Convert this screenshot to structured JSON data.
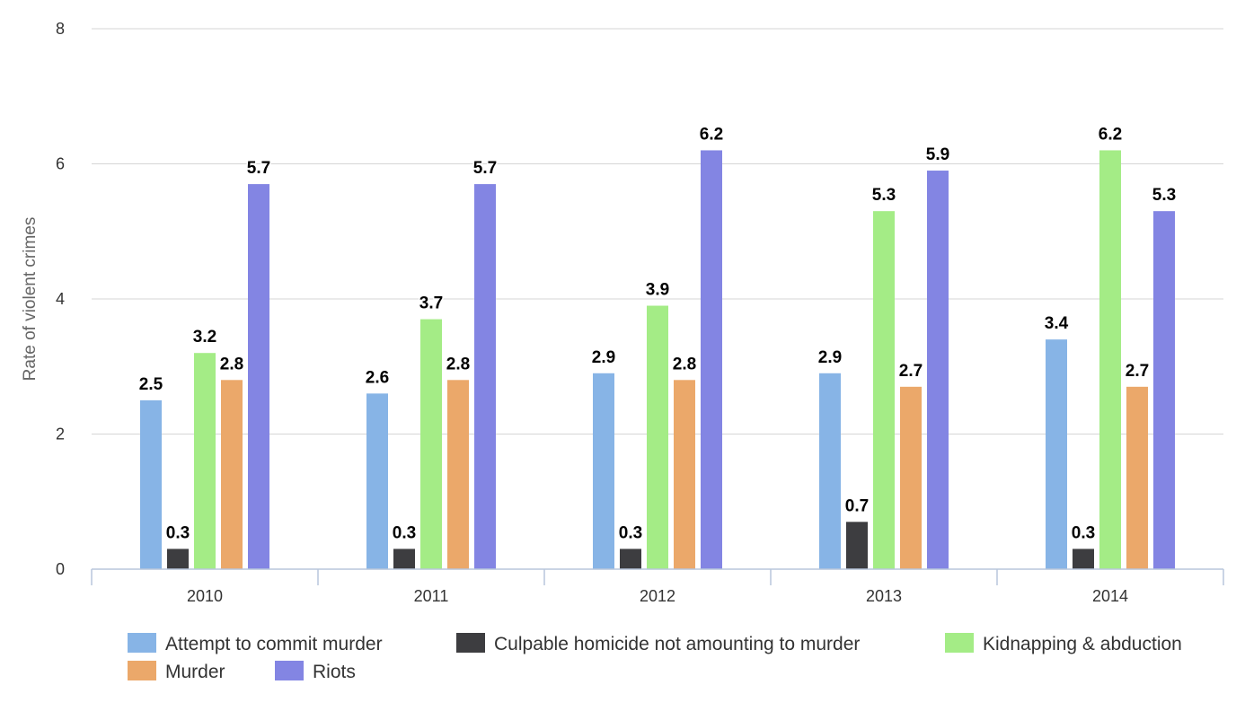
{
  "chart_data": {
    "type": "bar",
    "title": "",
    "xlabel": "",
    "ylabel": "Rate of violent crimes",
    "ylim": [
      0,
      8
    ],
    "yticks": [
      0,
      2,
      4,
      6,
      8
    ],
    "grid": true,
    "legend_position": "bottom",
    "categories": [
      "2010",
      "2011",
      "2012",
      "2013",
      "2014"
    ],
    "series": [
      {
        "name": "Attempt to commit murder",
        "color": "#87b4e6",
        "values": [
          2.5,
          2.6,
          2.9,
          2.9,
          3.4
        ]
      },
      {
        "name": "Culpable homicide not amounting to murder",
        "color": "#3d3d40",
        "values": [
          0.3,
          0.3,
          0.3,
          0.7,
          0.3
        ]
      },
      {
        "name": "Kidnapping & abduction",
        "color": "#a4ec86",
        "values": [
          3.2,
          3.7,
          3.9,
          5.3,
          6.2
        ]
      },
      {
        "name": "Murder",
        "color": "#eba86a",
        "values": [
          2.8,
          2.8,
          2.8,
          2.7,
          2.7
        ]
      },
      {
        "name": "Riots",
        "color": "#8385e3",
        "values": [
          5.7,
          5.7,
          6.2,
          5.9,
          5.3
        ]
      }
    ]
  }
}
